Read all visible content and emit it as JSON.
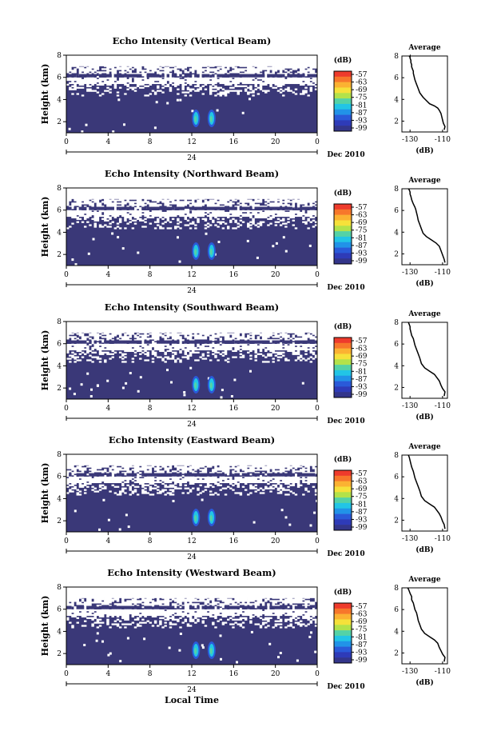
{
  "chart_data": {
    "type": "heatmap",
    "date_label": "Dec 2010",
    "x_ticks": [
      "0",
      "4",
      "8",
      "12",
      "16",
      "20",
      "0"
    ],
    "x_day_label": "24",
    "xlabel": "Local Time",
    "xlim": [
      0,
      24
    ],
    "ylabel": "Height (km)",
    "y_ticks": [
      "2",
      "4",
      "6",
      "8"
    ],
    "ylim": [
      1,
      8
    ],
    "colorbar": {
      "unit_label": "(dB)",
      "ticks": [
        "-57",
        "-63",
        "-69",
        "-75",
        "-81",
        "-87",
        "-93",
        "-99"
      ],
      "colors": [
        "#ee3b2c",
        "#f7772b",
        "#fbb232",
        "#f6e13a",
        "#b3e24a",
        "#54d2a6",
        "#22c5e6",
        "#2193e8",
        "#2a5ad9",
        "#2e3bb8",
        "#33358a"
      ]
    },
    "background_color": "#3a3878",
    "profile": {
      "title": "Average",
      "xlabel": "(dB)",
      "x_ticks": [
        "-130",
        "-110"
      ],
      "y_ticks": [
        "2",
        "4",
        "6",
        "8"
      ],
      "xlim": [
        -135,
        -107
      ],
      "ylim": [
        1,
        8
      ]
    },
    "panels": [
      {
        "title": "Echo Intensity (Vertical Beam)",
        "profile_x": [
          -109,
          -108.5,
          -109.5,
          -110,
          -110.5,
          -111,
          -112,
          -113,
          -115,
          -118,
          -120,
          -122,
          -124,
          -125,
          -126,
          -127,
          -127.5,
          -128,
          -128,
          -128.5,
          -129,
          -129,
          -129.5,
          -129.5,
          -130,
          -130,
          -130.5,
          -130
        ],
        "profile_y": [
          1.2,
          1.5,
          1.8,
          2.1,
          2.4,
          2.7,
          3.0,
          3.2,
          3.4,
          3.6,
          3.9,
          4.2,
          4.6,
          5.0,
          5.4,
          5.8,
          6.1,
          6.4,
          6.6,
          6.8,
          7.0,
          7.2,
          7.4,
          7.6,
          7.8,
          8.0,
          7.9,
          8.0
        ]
      },
      {
        "title": "Echo Intensity (Northward Beam)",
        "profile_x": [
          -108.5,
          -109,
          -110,
          -111,
          -112,
          -114,
          -117,
          -120,
          -122,
          -123,
          -124,
          -125,
          -125.5,
          -126,
          -126.5,
          -127,
          -128,
          -128.5,
          -129,
          -129.5,
          -130,
          -130,
          -130.5,
          -131
        ],
        "profile_y": [
          1.2,
          1.5,
          1.9,
          2.3,
          2.7,
          3.0,
          3.3,
          3.6,
          3.9,
          4.3,
          4.7,
          5.1,
          5.5,
          5.8,
          6.1,
          6.3,
          6.6,
          6.8,
          7.0,
          7.3,
          7.5,
          7.7,
          7.9,
          8.0
        ]
      },
      {
        "title": "Echo Intensity (Southward Beam)",
        "profile_x": [
          -109,
          -108.5,
          -110,
          -111,
          -112,
          -113.5,
          -115,
          -118,
          -121,
          -123,
          -124,
          -125,
          -126,
          -127,
          -127.5,
          -128,
          -129,
          -129.5,
          -130,
          -130,
          -130.5,
          -131
        ],
        "profile_y": [
          1.2,
          1.6,
          1.9,
          2.2,
          2.6,
          2.9,
          3.2,
          3.5,
          3.8,
          4.2,
          4.7,
          5.1,
          5.5,
          5.9,
          6.2,
          6.5,
          6.8,
          7.1,
          7.4,
          7.6,
          7.8,
          8.0
        ]
      },
      {
        "title": "Echo Intensity (Eastward Beam)",
        "profile_x": [
          -108.5,
          -109,
          -110,
          -111,
          -112,
          -113.5,
          -115,
          -118,
          -121,
          -123,
          -124,
          -125,
          -126,
          -127,
          -127.5,
          -128,
          -129,
          -129.5,
          -130,
          -130.5,
          -131
        ],
        "profile_y": [
          1.2,
          1.6,
          1.9,
          2.3,
          2.6,
          2.9,
          3.2,
          3.5,
          3.8,
          4.2,
          4.7,
          5.1,
          5.5,
          5.9,
          6.2,
          6.5,
          6.9,
          7.2,
          7.5,
          7.8,
          8.0
        ]
      },
      {
        "title": "Echo Intensity (Westward Beam)",
        "profile_x": [
          -109,
          -108.5,
          -110,
          -111,
          -112,
          -113,
          -115,
          -118,
          -121,
          -123,
          -124,
          -125,
          -125.5,
          -126,
          -127,
          -127.5,
          -128,
          -129,
          -129,
          -130,
          -130.5,
          -131,
          -131.5
        ],
        "profile_y": [
          1.2,
          1.6,
          1.9,
          2.2,
          2.5,
          2.9,
          3.2,
          3.5,
          3.8,
          4.2,
          4.6,
          5.0,
          5.4,
          5.7,
          6.0,
          6.3,
          6.6,
          6.9,
          7.2,
          7.5,
          7.7,
          7.9,
          8.0
        ]
      }
    ]
  }
}
